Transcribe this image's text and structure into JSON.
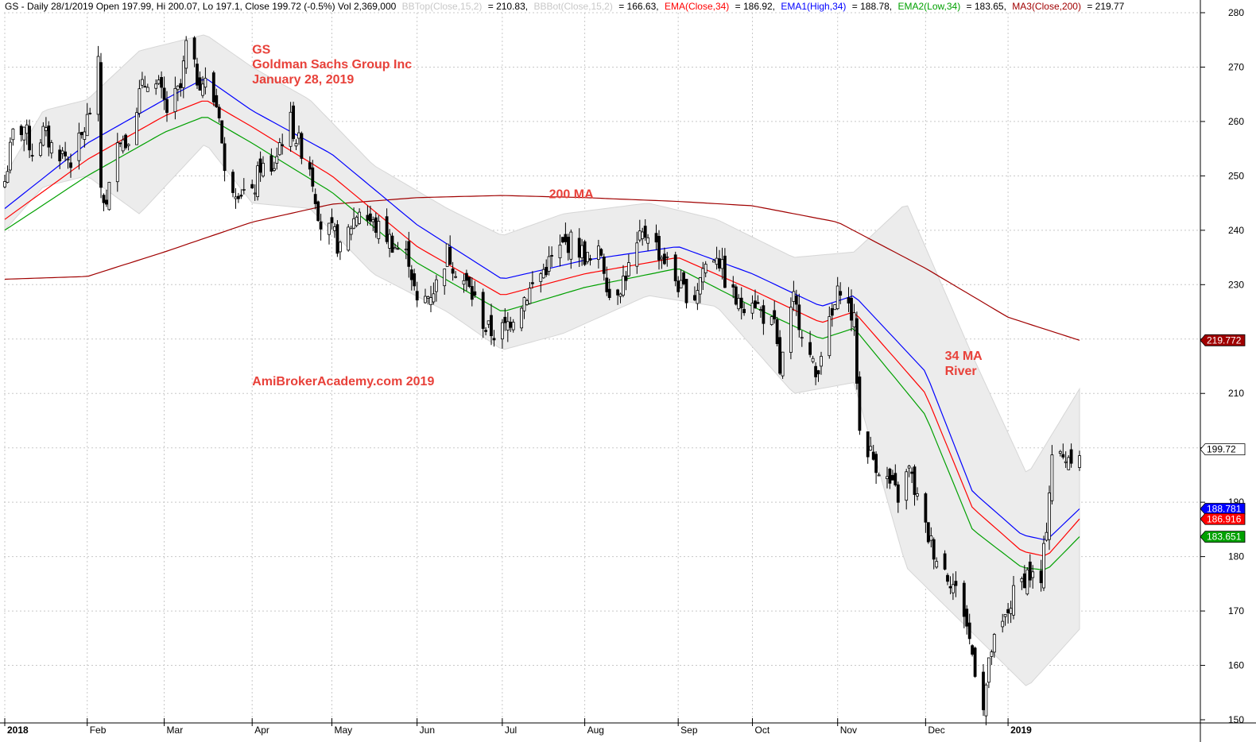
{
  "header": {
    "prefix": "GS - Daily 28/1/2019 Open 197.99, Hi 200.07, Lo 197.1, Close 199.72 (-0.5%) Vol 2,369,000",
    "bbtop_label": "BBTop(Close,15,2)",
    "bbtop_value": "= 210.83,",
    "bbbot_label": "BBBot(Close,15,2)",
    "bbbot_value": "= 166.63,",
    "ema_label": "EMA(Close,34)",
    "ema_value": "= 186.92,",
    "ema1_label": "EMA1(High,34)",
    "ema1_value": "= 188.78,",
    "ema2_label": "EMA2(Low,34)",
    "ema2_value": "= 183.65,",
    "ma3_label": "MA3(Close,200)",
    "ma3_value": "= 219.77"
  },
  "colors": {
    "background": "#ffffff",
    "grid": "#c8c8c8",
    "bollinger_fill": "#ececec",
    "ema_close": "#ff0000",
    "ema_high": "#0000ff",
    "ema_low": "#00a000",
    "ma200": "#a00000",
    "annotation": "#e8413a",
    "candle": "#000000"
  },
  "chart_data": {
    "type": "candlestick",
    "symbol": "GS",
    "y_axis": {
      "min": 150,
      "max": 280,
      "ticks": [
        150,
        160,
        170,
        180,
        190,
        200,
        210,
        220,
        230,
        240,
        250,
        260,
        270,
        280
      ],
      "side": "right"
    },
    "x_axis": {
      "labels": [
        "2018",
        "Feb",
        "Mar",
        "Apr",
        "May",
        "Jun",
        "Jul",
        "Aug",
        "Sep",
        "Oct",
        "Nov",
        "Dec",
        "2019"
      ],
      "bold_labels": [
        "2018",
        "2019"
      ]
    },
    "grid": true,
    "close_path": [
      [
        "2018-01-02",
        249.0
      ],
      [
        "2018-01-05",
        257.5
      ],
      [
        "2018-01-09",
        259.0
      ],
      [
        "2018-01-12",
        254.5
      ],
      [
        "2018-01-16",
        258.0
      ],
      [
        "2018-01-19",
        255.5
      ],
      [
        "2018-01-23",
        254.0
      ],
      [
        "2018-01-26",
        253.0
      ],
      [
        "2018-01-30",
        257.0
      ],
      [
        "2018-02-02",
        262.0
      ],
      [
        "2018-02-05",
        270.0
      ],
      [
        "2018-02-06",
        248.0
      ],
      [
        "2018-02-08",
        244.0
      ],
      [
        "2018-02-12",
        258.0
      ],
      [
        "2018-02-15",
        256.0
      ],
      [
        "2018-02-20",
        265.0
      ],
      [
        "2018-02-23",
        268.0
      ],
      [
        "2018-02-27",
        266.0
      ],
      [
        "2018-03-02",
        262.0
      ],
      [
        "2018-03-07",
        266.0
      ],
      [
        "2018-03-09",
        274.0
      ],
      [
        "2018-03-13",
        268.0
      ],
      [
        "2018-03-16",
        267.0
      ],
      [
        "2018-03-21",
        262.0
      ],
      [
        "2018-03-23",
        250.0
      ],
      [
        "2018-03-27",
        248.0
      ],
      [
        "2018-04-02",
        246.0
      ],
      [
        "2018-04-05",
        252.0
      ],
      [
        "2018-04-09",
        250.0
      ],
      [
        "2018-04-12",
        256.0
      ],
      [
        "2018-04-16",
        260.0
      ],
      [
        "2018-04-18",
        257.0
      ],
      [
        "2018-04-23",
        252.0
      ],
      [
        "2018-04-27",
        241.0
      ],
      [
        "2018-05-02",
        239.0
      ],
      [
        "2018-05-04",
        236.0
      ],
      [
        "2018-05-08",
        241.0
      ],
      [
        "2018-05-11",
        244.0
      ],
      [
        "2018-05-16",
        241.0
      ],
      [
        "2018-05-21",
        239.0
      ],
      [
        "2018-05-24",
        237.0
      ],
      [
        "2018-05-29",
        235.0
      ],
      [
        "2018-06-01",
        226.0
      ],
      [
        "2018-06-05",
        228.0
      ],
      [
        "2018-06-08",
        230.0
      ],
      [
        "2018-06-12",
        236.0
      ],
      [
        "2018-06-15",
        233.0
      ],
      [
        "2018-06-19",
        230.0
      ],
      [
        "2018-06-22",
        227.0
      ],
      [
        "2018-06-26",
        222.0
      ],
      [
        "2018-06-29",
        221.0
      ],
      [
        "2018-07-03",
        222.0
      ],
      [
        "2018-07-09",
        227.0
      ],
      [
        "2018-07-12",
        229.0
      ],
      [
        "2018-07-16",
        232.0
      ],
      [
        "2018-07-19",
        234.0
      ],
      [
        "2018-07-24",
        237.0
      ],
      [
        "2018-07-27",
        238.0
      ],
      [
        "2018-07-31",
        236.0
      ],
      [
        "2018-08-03",
        234.0
      ],
      [
        "2018-08-07",
        236.0
      ],
      [
        "2018-08-10",
        228.0
      ],
      [
        "2018-08-14",
        230.0
      ],
      [
        "2018-08-17",
        233.0
      ],
      [
        "2018-08-21",
        238.0
      ],
      [
        "2018-08-24",
        240.0
      ],
      [
        "2018-08-28",
        236.0
      ],
      [
        "2018-08-31",
        234.0
      ],
      [
        "2018-09-05",
        229.0
      ],
      [
        "2018-09-10",
        228.0
      ],
      [
        "2018-09-13",
        233.0
      ],
      [
        "2018-09-18",
        236.0
      ],
      [
        "2018-09-21",
        231.0
      ],
      [
        "2018-09-26",
        226.0
      ],
      [
        "2018-10-01",
        228.0
      ],
      [
        "2018-10-04",
        225.0
      ],
      [
        "2018-10-09",
        222.0
      ],
      [
        "2018-10-11",
        214.0
      ],
      [
        "2018-10-16",
        227.0
      ],
      [
        "2018-10-19",
        222.0
      ],
      [
        "2018-10-24",
        213.0
      ],
      [
        "2018-10-26",
        218.0
      ],
      [
        "2018-10-30",
        224.0
      ],
      [
        "2018-11-02",
        230.0
      ],
      [
        "2018-11-07",
        223.0
      ],
      [
        "2018-11-09",
        203.0
      ],
      [
        "2018-11-14",
        198.0
      ],
      [
        "2018-11-19",
        194.0
      ],
      [
        "2018-11-23",
        191.0
      ],
      [
        "2018-11-27",
        196.0
      ],
      [
        "2018-12-03",
        185.0
      ],
      [
        "2018-12-07",
        180.0
      ],
      [
        "2018-12-12",
        176.0
      ],
      [
        "2018-12-17",
        170.0
      ],
      [
        "2018-12-20",
        162.0
      ],
      [
        "2018-12-24",
        153.0
      ],
      [
        "2018-12-27",
        163.0
      ],
      [
        "2018-12-31",
        167.0
      ],
      [
        "2019-01-04",
        173.0
      ],
      [
        "2019-01-09",
        177.0
      ],
      [
        "2019-01-14",
        175.0
      ],
      [
        "2019-01-16",
        186.0
      ],
      [
        "2019-01-18",
        199.0
      ],
      [
        "2019-01-22",
        198.0
      ],
      [
        "2019-01-25",
        199.0
      ],
      [
        "2019-01-28",
        199.72
      ]
    ],
    "series": [
      {
        "name": "MA3(Close,200)",
        "color": "#a00000",
        "last": 219.77,
        "points": [
          [
            "2018-01-02",
            231.0
          ],
          [
            "2018-02-01",
            231.5
          ],
          [
            "2018-03-01",
            236.0
          ],
          [
            "2018-04-02",
            241.5
          ],
          [
            "2018-05-01",
            244.8
          ],
          [
            "2018-06-01",
            246.0
          ],
          [
            "2018-07-02",
            246.4
          ],
          [
            "2018-08-01",
            246.0
          ],
          [
            "2018-09-04",
            245.3
          ],
          [
            "2018-10-01",
            244.5
          ],
          [
            "2018-11-01",
            241.5
          ],
          [
            "2018-12-03",
            233.0
          ],
          [
            "2019-01-02",
            224.0
          ],
          [
            "2019-01-28",
            219.77
          ]
        ]
      },
      {
        "name": "EMA1(High,34)",
        "color": "#0000ff",
        "last": 188.78,
        "points": [
          [
            "2018-01-02",
            244.0
          ],
          [
            "2018-02-01",
            256.0
          ],
          [
            "2018-03-01",
            264.0
          ],
          [
            "2018-03-16",
            268.0
          ],
          [
            "2018-04-02",
            262.0
          ],
          [
            "2018-05-01",
            254.0
          ],
          [
            "2018-06-01",
            241.0
          ],
          [
            "2018-07-02",
            231.0
          ],
          [
            "2018-08-01",
            234.5
          ],
          [
            "2018-09-04",
            237.0
          ],
          [
            "2018-10-01",
            232.0
          ],
          [
            "2018-10-26",
            226.0
          ],
          [
            "2018-11-07",
            228.0
          ],
          [
            "2018-12-03",
            214.0
          ],
          [
            "2018-12-20",
            192.0
          ],
          [
            "2019-01-07",
            184.0
          ],
          [
            "2019-01-16",
            183.0
          ],
          [
            "2019-01-28",
            188.78
          ]
        ]
      },
      {
        "name": "EMA(Close,34)",
        "color": "#ff0000",
        "last": 186.92,
        "points": [
          [
            "2018-01-02",
            242.0
          ],
          [
            "2018-02-01",
            253.0
          ],
          [
            "2018-03-01",
            261.0
          ],
          [
            "2018-03-16",
            264.0
          ],
          [
            "2018-04-02",
            259.0
          ],
          [
            "2018-05-01",
            250.0
          ],
          [
            "2018-06-01",
            237.0
          ],
          [
            "2018-07-02",
            228.0
          ],
          [
            "2018-08-01",
            232.0
          ],
          [
            "2018-09-04",
            235.0
          ],
          [
            "2018-10-01",
            229.0
          ],
          [
            "2018-10-26",
            223.0
          ],
          [
            "2018-11-07",
            225.0
          ],
          [
            "2018-12-03",
            210.0
          ],
          [
            "2018-12-20",
            189.0
          ],
          [
            "2019-01-07",
            181.0
          ],
          [
            "2019-01-16",
            180.0
          ],
          [
            "2019-01-28",
            186.92
          ]
        ]
      },
      {
        "name": "EMA2(Low,34)",
        "color": "#00a000",
        "last": 183.65,
        "points": [
          [
            "2018-01-02",
            240.0
          ],
          [
            "2018-02-01",
            250.0
          ],
          [
            "2018-03-01",
            258.0
          ],
          [
            "2018-03-16",
            261.0
          ],
          [
            "2018-04-02",
            256.0
          ],
          [
            "2018-05-01",
            247.0
          ],
          [
            "2018-06-01",
            234.0
          ],
          [
            "2018-07-02",
            225.0
          ],
          [
            "2018-08-01",
            229.5
          ],
          [
            "2018-09-04",
            233.0
          ],
          [
            "2018-10-01",
            226.0
          ],
          [
            "2018-10-26",
            220.0
          ],
          [
            "2018-11-07",
            222.0
          ],
          [
            "2018-12-03",
            206.0
          ],
          [
            "2018-12-20",
            185.0
          ],
          [
            "2019-01-07",
            178.0
          ],
          [
            "2019-01-16",
            177.5
          ],
          [
            "2019-01-28",
            183.65
          ]
        ]
      },
      {
        "name": "BBTop(Close,15,2)",
        "color": "#ececec",
        "last": 210.83,
        "points": [
          [
            "2018-01-02",
            250.0
          ],
          [
            "2018-01-16",
            262.0
          ],
          [
            "2018-02-01",
            264.0
          ],
          [
            "2018-02-20",
            273.0
          ],
          [
            "2018-03-16",
            276.0
          ],
          [
            "2018-04-02",
            270.0
          ],
          [
            "2018-04-23",
            264.0
          ],
          [
            "2018-05-16",
            252.0
          ],
          [
            "2018-06-12",
            244.0
          ],
          [
            "2018-07-02",
            239.0
          ],
          [
            "2018-07-24",
            243.0
          ],
          [
            "2018-08-24",
            245.0
          ],
          [
            "2018-09-18",
            242.0
          ],
          [
            "2018-10-16",
            235.0
          ],
          [
            "2018-11-07",
            236.0
          ],
          [
            "2018-11-26",
            245.0
          ],
          [
            "2018-12-20",
            217.0
          ],
          [
            "2019-01-09",
            195.0
          ],
          [
            "2019-01-28",
            210.83
          ]
        ]
      },
      {
        "name": "BBBot(Close,15,2)",
        "color": "#ececec",
        "last": 166.63,
        "points": [
          [
            "2018-01-02",
            240.0
          ],
          [
            "2018-01-16",
            248.0
          ],
          [
            "2018-02-01",
            250.0
          ],
          [
            "2018-02-20",
            243.0
          ],
          [
            "2018-03-16",
            256.0
          ],
          [
            "2018-04-02",
            245.0
          ],
          [
            "2018-04-23",
            244.0
          ],
          [
            "2018-05-16",
            232.0
          ],
          [
            "2018-06-12",
            225.0
          ],
          [
            "2018-07-02",
            218.0
          ],
          [
            "2018-07-24",
            221.0
          ],
          [
            "2018-08-24",
            228.0
          ],
          [
            "2018-09-18",
            226.0
          ],
          [
            "2018-10-16",
            210.0
          ],
          [
            "2018-11-07",
            212.0
          ],
          [
            "2018-11-26",
            178.0
          ],
          [
            "2018-12-20",
            166.0
          ],
          [
            "2019-01-09",
            156.0
          ],
          [
            "2019-01-28",
            166.63
          ]
        ]
      }
    ],
    "price_tags": [
      {
        "series": "MA3(Close,200)",
        "label": "219.772",
        "value": 219.772,
        "bg": "#a00000",
        "fg": "#ffffff"
      },
      {
        "series": "Close",
        "label": "199.72",
        "value": 199.72,
        "bg": "#ffffff",
        "fg": "#000000"
      },
      {
        "series": "EMA1(High,34)",
        "label": "188.781",
        "value": 188.781,
        "bg": "#0000ff",
        "fg": "#ffffff"
      },
      {
        "series": "EMA(Close,34)",
        "label": "186.916",
        "value": 186.916,
        "bg": "#ff0000",
        "fg": "#ffffff"
      },
      {
        "series": "EMA2(Low,34)",
        "label": "183.651",
        "value": 183.651,
        "bg": "#00a000",
        "fg": "#ffffff"
      }
    ],
    "annotations": [
      {
        "text": "GS",
        "date": "2018-04-02",
        "price": 272.5
      },
      {
        "text": "Goldman Sachs Group Inc",
        "date": "2018-04-02",
        "price": 269.8
      },
      {
        "text": "January 28, 2019",
        "date": "2018-04-02",
        "price": 267.0
      },
      {
        "text": "200 MA",
        "date": "2018-07-19",
        "price": 245.9
      },
      {
        "text": "AmiBrokerAcademy.com  2019",
        "date": "2018-04-02",
        "price": 211.5
      },
      {
        "text": "34 MA",
        "date": "2018-12-10",
        "price": 216.2
      },
      {
        "text": "River",
        "date": "2018-12-10",
        "price": 213.4
      }
    ]
  }
}
